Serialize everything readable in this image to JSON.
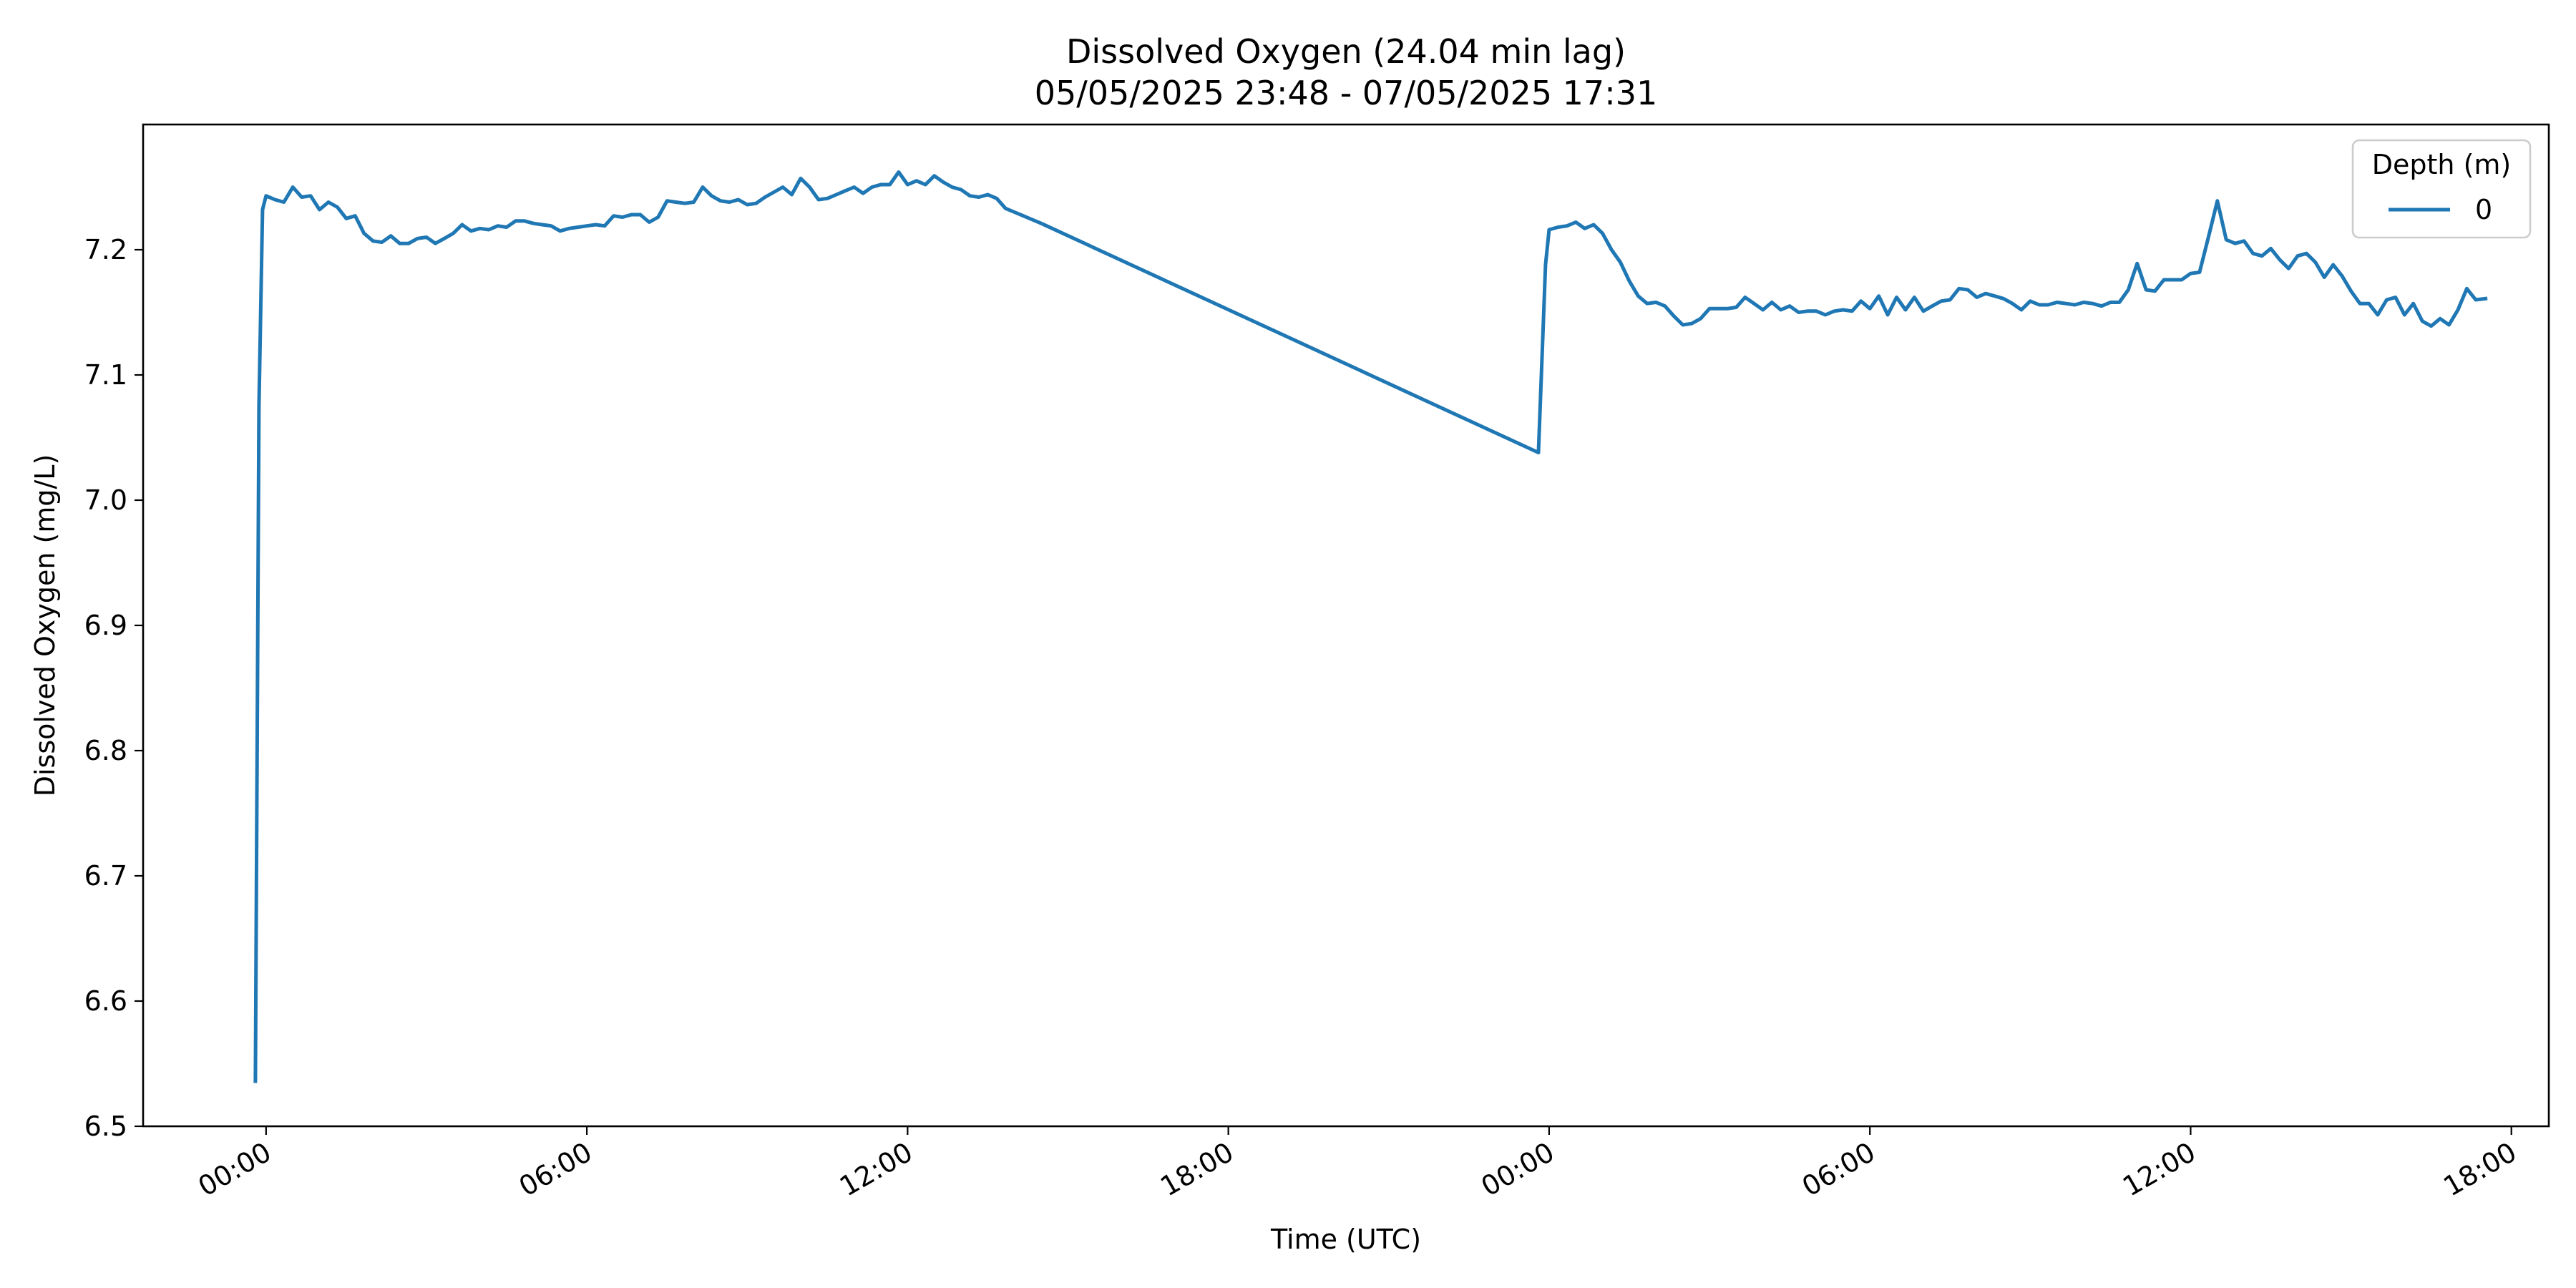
{
  "chart_data": {
    "type": "line",
    "title": "Dissolved Oxygen (24.04 min lag)",
    "subtitle": "05/05/2025 23:48 - 07/05/2025 17:31",
    "xlabel": "Time (UTC)",
    "ylabel": "Dissolved Oxygen (mg/L)",
    "x_range": [
      "2025-05-05 21:42",
      "2025-05-07 18:42"
    ],
    "ylim": [
      6.5,
      7.3
    ],
    "x_ticks": [
      {
        "t": "2025-05-06 00:00",
        "label": "00:00"
      },
      {
        "t": "2025-05-06 06:00",
        "label": "06:00"
      },
      {
        "t": "2025-05-06 12:00",
        "label": "12:00"
      },
      {
        "t": "2025-05-06 18:00",
        "label": "18:00"
      },
      {
        "t": "2025-05-07 00:00",
        "label": "00:00"
      },
      {
        "t": "2025-05-07 06:00",
        "label": "06:00"
      },
      {
        "t": "2025-05-07 12:00",
        "label": "12:00"
      },
      {
        "t": "2025-05-07 18:00",
        "label": "18:00"
      }
    ],
    "y_ticks": [
      6.5,
      6.6,
      6.7,
      6.8,
      6.9,
      7.0,
      7.1,
      7.2
    ],
    "y_tick_labels": [
      "6.5",
      "6.6",
      "6.7",
      "6.8",
      "6.9",
      "7.0",
      "7.1",
      "7.2"
    ],
    "grid": false,
    "legend": {
      "title": "Depth (m)",
      "placement": "top-right"
    },
    "series": [
      {
        "name": "0",
        "color": "#1f77b4",
        "x": [
          "2025-05-05 23:48",
          "2025-05-05 23:52",
          "2025-05-05 23:56",
          "2025-05-06 00:00",
          "2025-05-06 00:10",
          "2025-05-06 00:20",
          "2025-05-06 00:30",
          "2025-05-06 00:40",
          "2025-05-06 00:50",
          "2025-05-06 01:00",
          "2025-05-06 01:10",
          "2025-05-06 01:20",
          "2025-05-06 01:30",
          "2025-05-06 01:40",
          "2025-05-06 01:50",
          "2025-05-06 02:00",
          "2025-05-06 02:10",
          "2025-05-06 02:20",
          "2025-05-06 02:30",
          "2025-05-06 02:40",
          "2025-05-06 02:50",
          "2025-05-06 03:00",
          "2025-05-06 03:10",
          "2025-05-06 03:20",
          "2025-05-06 03:30",
          "2025-05-06 03:40",
          "2025-05-06 03:50",
          "2025-05-06 04:00",
          "2025-05-06 04:10",
          "2025-05-06 04:20",
          "2025-05-06 04:30",
          "2025-05-06 04:40",
          "2025-05-06 04:50",
          "2025-05-06 05:00",
          "2025-05-06 05:10",
          "2025-05-06 05:20",
          "2025-05-06 05:30",
          "2025-05-06 05:40",
          "2025-05-06 05:50",
          "2025-05-06 06:00",
          "2025-05-06 06:10",
          "2025-05-06 06:20",
          "2025-05-06 06:30",
          "2025-05-06 06:40",
          "2025-05-06 06:50",
          "2025-05-06 07:00",
          "2025-05-06 07:10",
          "2025-05-06 07:20",
          "2025-05-06 07:30",
          "2025-05-06 07:40",
          "2025-05-06 07:50",
          "2025-05-06 08:00",
          "2025-05-06 08:10",
          "2025-05-06 08:20",
          "2025-05-06 08:30",
          "2025-05-06 08:40",
          "2025-05-06 08:50",
          "2025-05-06 09:00",
          "2025-05-06 09:10",
          "2025-05-06 09:20",
          "2025-05-06 09:30",
          "2025-05-06 09:40",
          "2025-05-06 09:50",
          "2025-05-06 10:00",
          "2025-05-06 10:10",
          "2025-05-06 10:20",
          "2025-05-06 10:30",
          "2025-05-06 10:40",
          "2025-05-06 10:50",
          "2025-05-06 11:00",
          "2025-05-06 11:10",
          "2025-05-06 11:20",
          "2025-05-06 11:30",
          "2025-05-06 11:40",
          "2025-05-06 11:50",
          "2025-05-06 12:00",
          "2025-05-06 12:10",
          "2025-05-06 12:20",
          "2025-05-06 12:30",
          "2025-05-06 12:40",
          "2025-05-06 12:50",
          "2025-05-06 13:00",
          "2025-05-06 13:10",
          "2025-05-06 13:20",
          "2025-05-06 13:30",
          "2025-05-06 13:40",
          "2025-05-06 13:50",
          "2025-05-06 14:00",
          "2025-05-06 14:10",
          "2025-05-06 14:20",
          "2025-05-06 14:30",
          "2025-05-06 23:48",
          "2025-05-06 23:56",
          "2025-05-07 00:00",
          "2025-05-07 00:10",
          "2025-05-07 00:20",
          "2025-05-07 00:30",
          "2025-05-07 00:40",
          "2025-05-07 00:50",
          "2025-05-07 01:00",
          "2025-05-07 01:10",
          "2025-05-07 01:20",
          "2025-05-07 01:30",
          "2025-05-07 01:40",
          "2025-05-07 01:50",
          "2025-05-07 02:00",
          "2025-05-07 02:10",
          "2025-05-07 02:20",
          "2025-05-07 02:30",
          "2025-05-07 02:40",
          "2025-05-07 02:50",
          "2025-05-07 03:00",
          "2025-05-07 03:10",
          "2025-05-07 03:20",
          "2025-05-07 03:30",
          "2025-05-07 03:40",
          "2025-05-07 03:50",
          "2025-05-07 04:00",
          "2025-05-07 04:10",
          "2025-05-07 04:20",
          "2025-05-07 04:30",
          "2025-05-07 04:40",
          "2025-05-07 04:50",
          "2025-05-07 05:00",
          "2025-05-07 05:10",
          "2025-05-07 05:20",
          "2025-05-07 05:30",
          "2025-05-07 05:40",
          "2025-05-07 05:50",
          "2025-05-07 06:00",
          "2025-05-07 06:10",
          "2025-05-07 06:20",
          "2025-05-07 06:30",
          "2025-05-07 06:40",
          "2025-05-07 06:50",
          "2025-05-07 07:00",
          "2025-05-07 07:10",
          "2025-05-07 07:20",
          "2025-05-07 07:30",
          "2025-05-07 07:40",
          "2025-05-07 07:50",
          "2025-05-07 08:00",
          "2025-05-07 08:10",
          "2025-05-07 08:20",
          "2025-05-07 08:30",
          "2025-05-07 08:40",
          "2025-05-07 08:50",
          "2025-05-07 09:00",
          "2025-05-07 09:10",
          "2025-05-07 09:20",
          "2025-05-07 09:30",
          "2025-05-07 09:40",
          "2025-05-07 09:50",
          "2025-05-07 10:00",
          "2025-05-07 10:10",
          "2025-05-07 10:20",
          "2025-05-07 10:30",
          "2025-05-07 10:40",
          "2025-05-07 10:50",
          "2025-05-07 11:00",
          "2025-05-07 11:10",
          "2025-05-07 11:20",
          "2025-05-07 11:30",
          "2025-05-07 11:40",
          "2025-05-07 11:50",
          "2025-05-07 12:00",
          "2025-05-07 12:10",
          "2025-05-07 12:20",
          "2025-05-07 12:30",
          "2025-05-07 12:40",
          "2025-05-07 12:50",
          "2025-05-07 13:00",
          "2025-05-07 13:10",
          "2025-05-07 13:20",
          "2025-05-07 13:30",
          "2025-05-07 13:40",
          "2025-05-07 13:50",
          "2025-05-07 14:00",
          "2025-05-07 14:10",
          "2025-05-07 14:20",
          "2025-05-07 14:30",
          "2025-05-07 14:40",
          "2025-05-07 14:50",
          "2025-05-07 15:00",
          "2025-05-07 15:10",
          "2025-05-07 15:20",
          "2025-05-07 15:30",
          "2025-05-07 15:40",
          "2025-05-07 15:50",
          "2025-05-07 16:00",
          "2025-05-07 16:10",
          "2025-05-07 16:20",
          "2025-05-07 16:30",
          "2025-05-07 16:40",
          "2025-05-07 16:50",
          "2025-05-07 17:00",
          "2025-05-07 17:10",
          "2025-05-07 17:20",
          "2025-05-07 17:31"
        ],
        "y": [
          6.536,
          7.075,
          7.232,
          7.243,
          7.24,
          7.238,
          7.25,
          7.242,
          7.243,
          7.232,
          7.238,
          7.234,
          7.225,
          7.227,
          7.213,
          7.207,
          7.206,
          7.211,
          7.205,
          7.205,
          7.209,
          7.21,
          7.205,
          7.209,
          7.213,
          7.22,
          7.215,
          7.217,
          7.216,
          7.219,
          7.218,
          7.223,
          7.223,
          7.221,
          7.22,
          7.219,
          7.215,
          7.217,
          7.218,
          7.219,
          7.22,
          7.219,
          7.227,
          7.226,
          7.228,
          7.228,
          7.222,
          7.226,
          7.239,
          7.238,
          7.237,
          7.238,
          7.25,
          7.243,
          7.239,
          7.238,
          7.24,
          7.236,
          7.237,
          7.242,
          7.246,
          7.25,
          7.244,
          7.257,
          7.25,
          7.24,
          7.241,
          7.244,
          7.247,
          7.25,
          7.245,
          7.25,
          7.252,
          7.252,
          7.262,
          7.252,
          7.255,
          7.252,
          7.259,
          7.254,
          7.25,
          7.248,
          7.243,
          7.242,
          7.244,
          7.241,
          7.233,
          7.23,
          7.227,
          7.224,
          7.221,
          7.038,
          7.188,
          7.216,
          7.218,
          7.219,
          7.222,
          7.217,
          7.22,
          7.213,
          7.2,
          7.19,
          7.175,
          7.163,
          7.157,
          7.158,
          7.155,
          7.147,
          7.14,
          7.141,
          7.145,
          7.153,
          7.153,
          7.153,
          7.154,
          7.162,
          7.157,
          7.152,
          7.158,
          7.152,
          7.155,
          7.15,
          7.151,
          7.151,
          7.148,
          7.151,
          7.152,
          7.151,
          7.159,
          7.153,
          7.163,
          7.148,
          7.162,
          7.152,
          7.162,
          7.151,
          7.155,
          7.159,
          7.16,
          7.169,
          7.168,
          7.162,
          7.165,
          7.163,
          7.161,
          7.157,
          7.152,
          7.159,
          7.156,
          7.156,
          7.158,
          7.157,
          7.156,
          7.158,
          7.157,
          7.155,
          7.158,
          7.158,
          7.168,
          7.189,
          7.168,
          7.167,
          7.176,
          7.176,
          7.176,
          7.181,
          7.182,
          7.21,
          7.239,
          7.208,
          7.205,
          7.207,
          7.197,
          7.195,
          7.201,
          7.192,
          7.185,
          7.195,
          7.197,
          7.19,
          7.178,
          7.188,
          7.179,
          7.167,
          7.157,
          7.157,
          7.148,
          7.16,
          7.162,
          7.148,
          7.157,
          7.143,
          7.139,
          7.145,
          7.14,
          7.152,
          7.169,
          7.16,
          7.161
        ]
      }
    ]
  }
}
